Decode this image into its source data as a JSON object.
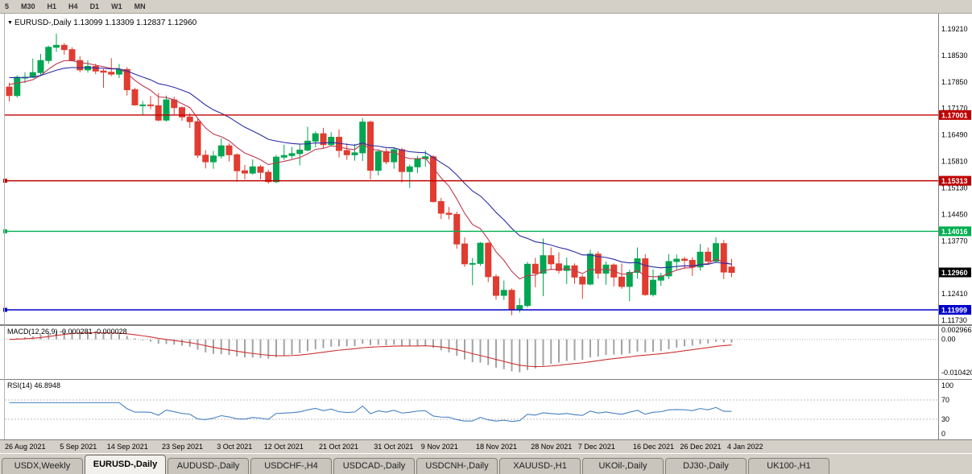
{
  "toolbar": {
    "timeframes": [
      "5",
      "M30",
      "H1",
      "H4",
      "D1",
      "W1",
      "MN"
    ]
  },
  "chart": {
    "title": "EURUSD-,Daily",
    "ohlc": "1.13099 1.13309 1.12837 1.12960"
  },
  "chart_data": {
    "type": "candlestick",
    "symbol": "EURUSD-",
    "timeframe": "Daily",
    "ohlc_current": {
      "open": "1.13099",
      "high": "1.13309",
      "low": "1.12837",
      "close": "1.12960"
    },
    "y_axis_labels": [
      "1.19210",
      "1.18530",
      "1.17850",
      "1.17170",
      "1.16490",
      "1.15810",
      "1.15130",
      "1.14450",
      "1.13770",
      "1.12410",
      "1.11730"
    ],
    "x_labels": [
      {
        "index": 0,
        "label": "26 Aug 2021"
      },
      {
        "index": 7,
        "label": "5 Sep 2021"
      },
      {
        "index": 13,
        "label": "14 Sep 2021"
      },
      {
        "index": 20,
        "label": "23 Sep 2021"
      },
      {
        "index": 27,
        "label": "3 Oct 2021"
      },
      {
        "index": 33,
        "label": "12 Oct 2021"
      },
      {
        "index": 40,
        "label": "21 Oct 2021"
      },
      {
        "index": 47,
        "label": "31 Oct 2021"
      },
      {
        "index": 53,
        "label": "9 Nov 2021"
      },
      {
        "index": 60,
        "label": "18 Nov 2021"
      },
      {
        "index": 67,
        "label": "28 Nov 2021"
      },
      {
        "index": 73,
        "label": "7 Dec 2021"
      },
      {
        "index": 80,
        "label": "16 Dec 2021"
      },
      {
        "index": 86,
        "label": "26 Dec 2021"
      },
      {
        "index": 92,
        "label": "4 Jan 2022"
      }
    ],
    "candles": [
      [
        1.1772,
        1.1783,
        1.1735,
        1.175
      ],
      [
        1.175,
        1.1802,
        1.1745,
        1.1797
      ],
      [
        1.1797,
        1.181,
        1.1782,
        1.1797
      ],
      [
        1.1797,
        1.1845,
        1.1795,
        1.1809
      ],
      [
        1.1809,
        1.1857,
        1.18,
        1.184
      ],
      [
        1.184,
        1.1878,
        1.1832,
        1.1874
      ],
      [
        1.1874,
        1.1909,
        1.1862,
        1.1879
      ],
      [
        1.1879,
        1.1885,
        1.1855,
        1.1868
      ],
      [
        1.1868,
        1.1874,
        1.1838,
        1.184
      ],
      [
        1.184,
        1.1851,
        1.181,
        1.1816
      ],
      [
        1.1816,
        1.1841,
        1.1809,
        1.1825
      ],
      [
        1.1825,
        1.1832,
        1.1805,
        1.1813
      ],
      [
        1.1813,
        1.1818,
        1.177,
        1.181
      ],
      [
        1.181,
        1.1846,
        1.18,
        1.1805
      ],
      [
        1.1805,
        1.1831,
        1.1795,
        1.1817
      ],
      [
        1.1817,
        1.1823,
        1.175,
        1.1765
      ],
      [
        1.1765,
        1.177,
        1.1724,
        1.1726
      ],
      [
        1.1726,
        1.1736,
        1.17,
        1.1726
      ],
      [
        1.1726,
        1.1749,
        1.1715,
        1.1724
      ],
      [
        1.1724,
        1.1756,
        1.1684,
        1.1687
      ],
      [
        1.1687,
        1.175,
        1.1683,
        1.1739
      ],
      [
        1.1739,
        1.1747,
        1.1701,
        1.1719
      ],
      [
        1.1719,
        1.1722,
        1.1685,
        1.1695
      ],
      [
        1.1695,
        1.1705,
        1.1667,
        1.1683
      ],
      [
        1.1683,
        1.169,
        1.159,
        1.1597
      ],
      [
        1.1597,
        1.161,
        1.1563,
        1.158
      ],
      [
        1.158,
        1.1608,
        1.1562,
        1.1595
      ],
      [
        1.1595,
        1.164,
        1.1588,
        1.1621
      ],
      [
        1.1621,
        1.1627,
        1.1581,
        1.1598
      ],
      [
        1.1598,
        1.1602,
        1.1529,
        1.1557
      ],
      [
        1.1557,
        1.1572,
        1.1535,
        1.1551
      ],
      [
        1.1551,
        1.1586,
        1.1547,
        1.1567
      ],
      [
        1.1567,
        1.1572,
        1.1535,
        1.1553
      ],
      [
        1.1553,
        1.156,
        1.1524,
        1.1529
      ],
      [
        1.1529,
        1.1598,
        1.1525,
        1.1592
      ],
      [
        1.1592,
        1.1624,
        1.1585,
        1.1596
      ],
      [
        1.1596,
        1.1618,
        1.1588,
        1.1601
      ],
      [
        1.1601,
        1.1626,
        1.1571,
        1.161
      ],
      [
        1.161,
        1.167,
        1.1607,
        1.1633
      ],
      [
        1.1633,
        1.1658,
        1.1617,
        1.1652
      ],
      [
        1.1652,
        1.1667,
        1.1616,
        1.1624
      ],
      [
        1.1624,
        1.1656,
        1.1621,
        1.1643
      ],
      [
        1.1643,
        1.1663,
        1.1591,
        1.1609
      ],
      [
        1.1609,
        1.1628,
        1.1585,
        1.1598
      ],
      [
        1.1598,
        1.1626,
        1.1583,
        1.1603
      ],
      [
        1.1603,
        1.1692,
        1.1582,
        1.1682
      ],
      [
        1.1682,
        1.1686,
        1.1535,
        1.1558
      ],
      [
        1.1558,
        1.161,
        1.1545,
        1.1606
      ],
      [
        1.1606,
        1.1614,
        1.1574,
        1.158
      ],
      [
        1.158,
        1.1617,
        1.1562,
        1.1611
      ],
      [
        1.1611,
        1.1616,
        1.1527,
        1.1555
      ],
      [
        1.1555,
        1.1573,
        1.1513,
        1.1567
      ],
      [
        1.1567,
        1.1595,
        1.1551,
        1.1588
      ],
      [
        1.1588,
        1.1609,
        1.1567,
        1.1593
      ],
      [
        1.1593,
        1.1597,
        1.1475,
        1.1478
      ],
      [
        1.1478,
        1.1487,
        1.1433,
        1.1448
      ],
      [
        1.1448,
        1.1464,
        1.1432,
        1.1445
      ],
      [
        1.1445,
        1.1452,
        1.1357,
        1.1369
      ],
      [
        1.1369,
        1.1386,
        1.131,
        1.1318
      ],
      [
        1.1318,
        1.1333,
        1.1263,
        1.1319
      ],
      [
        1.1319,
        1.1374,
        1.1313,
        1.1371
      ],
      [
        1.1371,
        1.1374,
        1.1271,
        1.1285
      ],
      [
        1.1285,
        1.1291,
        1.1226,
        1.1237
      ],
      [
        1.1237,
        1.1275,
        1.1225,
        1.125
      ],
      [
        1.125,
        1.1255,
        1.1186,
        1.12
      ],
      [
        1.12,
        1.123,
        1.1193,
        1.1211
      ],
      [
        1.1211,
        1.1323,
        1.1206,
        1.1317
      ],
      [
        1.1317,
        1.1333,
        1.1258,
        1.1294
      ],
      [
        1.1294,
        1.1383,
        1.1235,
        1.1339
      ],
      [
        1.1339,
        1.136,
        1.1302,
        1.1318
      ],
      [
        1.1318,
        1.1348,
        1.1293,
        1.1301
      ],
      [
        1.1301,
        1.1334,
        1.1266,
        1.1313
      ],
      [
        1.1313,
        1.1319,
        1.1267,
        1.1284
      ],
      [
        1.1284,
        1.129,
        1.1228,
        1.1266
      ],
      [
        1.1266,
        1.1354,
        1.1263,
        1.1343
      ],
      [
        1.1343,
        1.135,
        1.128,
        1.1294
      ],
      [
        1.1294,
        1.1324,
        1.1264,
        1.1315
      ],
      [
        1.1315,
        1.1319,
        1.126,
        1.1284
      ],
      [
        1.1284,
        1.1319,
        1.1254,
        1.126
      ],
      [
        1.126,
        1.1303,
        1.1222,
        1.1296
      ],
      [
        1.1296,
        1.136,
        1.128,
        1.1331
      ],
      [
        1.1331,
        1.1343,
        1.1236,
        1.1239
      ],
      [
        1.1239,
        1.1304,
        1.1234,
        1.1276
      ],
      [
        1.1276,
        1.1295,
        1.1262,
        1.1287
      ],
      [
        1.1287,
        1.1343,
        1.1279,
        1.1324
      ],
      [
        1.1324,
        1.1342,
        1.1303,
        1.133
      ],
      [
        1.133,
        1.1336,
        1.1305,
        1.1327
      ],
      [
        1.1327,
        1.1335,
        1.1287,
        1.131
      ],
      [
        1.131,
        1.1369,
        1.1301,
        1.1348
      ],
      [
        1.1348,
        1.136,
        1.1316,
        1.1325
      ],
      [
        1.1325,
        1.1386,
        1.1321,
        1.137
      ],
      [
        1.137,
        1.1379,
        1.1279,
        1.1297
      ],
      [
        1.13099,
        1.13309,
        1.12837,
        1.1296
      ]
    ],
    "hlines": [
      {
        "price": 1.17001,
        "label": "1.17001",
        "color": "#C00000",
        "anchor": false
      },
      {
        "price": 1.15313,
        "label": "1.15313",
        "color": "#C00000",
        "anchor": true
      },
      {
        "price": 1.14016,
        "label": "1.14016",
        "color": "#00B050",
        "anchor": true
      },
      {
        "price": 1.11999,
        "label": "1.11999",
        "color": "#0000CC",
        "anchor": true
      }
    ],
    "current_price": {
      "value": 1.1296,
      "label": "1.12960",
      "color": "#000000"
    },
    "indicators": {
      "macd": {
        "label": "MACD(12,26,9)",
        "values": "-0.000281 -0.000028",
        "axis_labels": [
          "0.002966",
          "0.00",
          "-0.010420"
        ]
      },
      "rsi": {
        "label": "RSI(14)",
        "value": "46.8948",
        "axis_labels": [
          "100",
          "70",
          "30",
          "0"
        ],
        "levels": [
          70,
          30
        ]
      }
    },
    "colors": {
      "bull": "#00A651",
      "bear": "#E03C31",
      "ma_fast": "#C03A52",
      "ma_slow": "#2B2BA8",
      "macd_signal": "#CC3333",
      "macd_hist": "#A3A3A3",
      "rsi": "#4680C2"
    }
  },
  "tabs": [
    {
      "label": "USDX,Weekly",
      "active": false
    },
    {
      "label": "EURUSD-,Daily",
      "active": true
    },
    {
      "label": "AUDUSD-,Daily",
      "active": false
    },
    {
      "label": "USDCHF-,H4",
      "active": false
    },
    {
      "label": "USDCAD-,Daily",
      "active": false
    },
    {
      "label": "USDCNH-,Daily",
      "active": false
    },
    {
      "label": "XAUUSD-,H1",
      "active": false
    },
    {
      "label": "UKOil-,Daily",
      "active": false
    },
    {
      "label": "DJ30-,Daily",
      "active": false
    },
    {
      "label": "UK100-,H1",
      "active": false
    }
  ]
}
